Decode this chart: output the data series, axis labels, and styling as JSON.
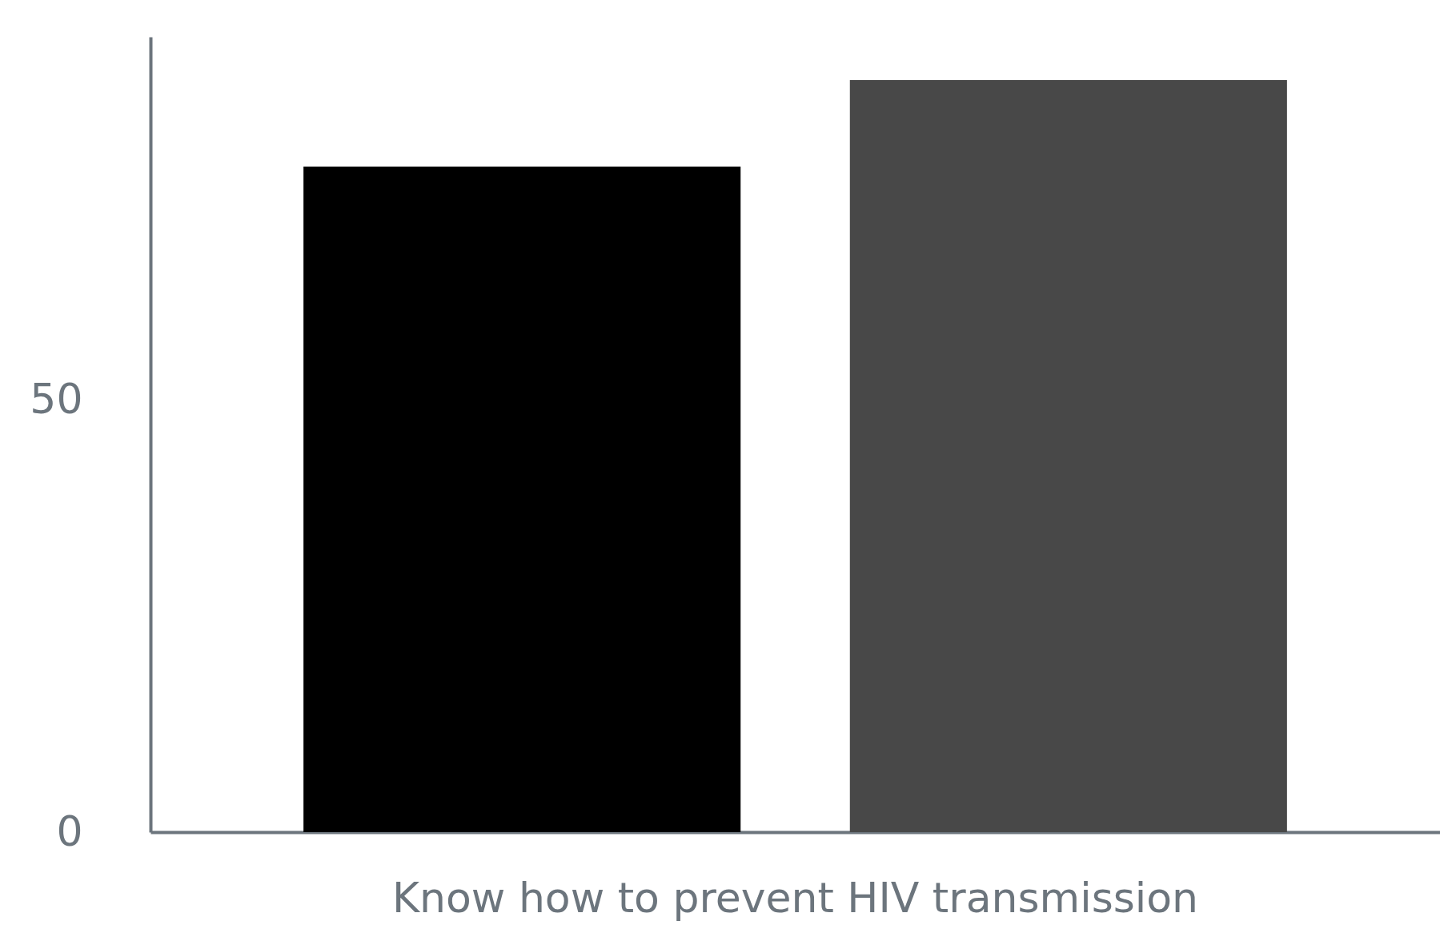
{
  "chart_data": {
    "type": "bar",
    "categories": [
      "Know how to prevent HIV transmission"
    ],
    "series": [
      {
        "color": "#000000",
        "values": [
          77
        ]
      },
      {
        "color": "#484848",
        "values": [
          87
        ]
      }
    ],
    "ylim": [
      0,
      92
    ],
    "yticks": [
      0,
      50
    ],
    "grid": false
  }
}
